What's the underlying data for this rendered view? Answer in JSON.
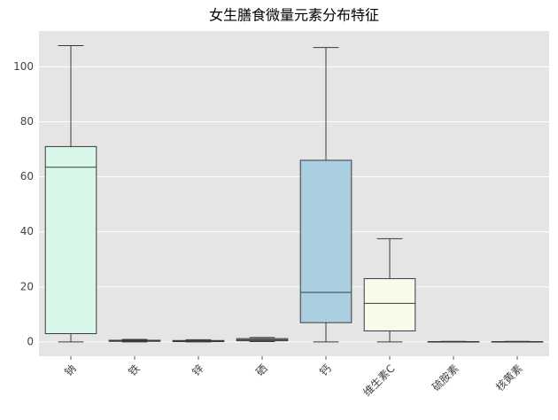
{
  "chart_data": {
    "type": "box",
    "title": "女生膳食微量元素分布特征",
    "categories": [
      "钠",
      "铁",
      "锌",
      "硒",
      "钙",
      "维生素C",
      "硫胺素",
      "核黄素"
    ],
    "boxes": [
      {
        "whislo": 0,
        "q1": 3,
        "med": 63.5,
        "q3": 71,
        "whishi": 107.7
      },
      {
        "whislo": 0,
        "q1": 0.2,
        "med": 0.4,
        "q3": 0.6,
        "whishi": 0.9
      },
      {
        "whislo": 0,
        "q1": 0.1,
        "med": 0.3,
        "q3": 0.5,
        "whishi": 0.8
      },
      {
        "whislo": 0.1,
        "q1": 0.4,
        "med": 0.8,
        "q3": 1.2,
        "whishi": 1.6
      },
      {
        "whislo": 0,
        "q1": 7,
        "med": 18,
        "q3": 66,
        "whishi": 107
      },
      {
        "whislo": 0,
        "q1": 4,
        "med": 14,
        "q3": 23,
        "whishi": 37.5
      },
      {
        "whislo": 0,
        "q1": 0,
        "med": 0.1,
        "q3": 0.1,
        "whishi": 0.2
      },
      {
        "whislo": 0,
        "q1": 0,
        "med": 0.1,
        "q3": 0.1,
        "whishi": 0.2
      }
    ],
    "colors": [
      "#d9f7e8",
      "#e6d9f2",
      "#f7e0c8",
      "#f2c9d4",
      "#a9cfe0",
      "#f7fbe8",
      "#dbe8f2",
      "#f2ecd9"
    ],
    "ylim": [
      -5.2,
      113
    ],
    "yticks": [
      0,
      20,
      40,
      60,
      80,
      100
    ],
    "grid": true
  }
}
